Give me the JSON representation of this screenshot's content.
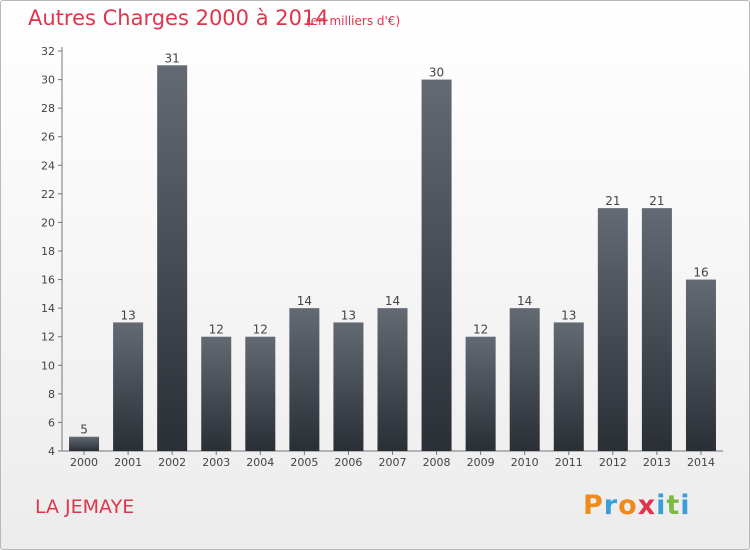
{
  "title": "Autres Charges 2000 à 2014",
  "subtitle": "(en milliers d'€)",
  "commune": "LA JEMAYE",
  "logo": {
    "letters": [
      "P",
      "r",
      "o",
      "x",
      "i",
      "t",
      "i"
    ],
    "colors": [
      "#f08a1d",
      "#3a9fd6",
      "#f08a1d",
      "#e0344c",
      "#3a9fd6",
      "#7db943",
      "#3a9fd6"
    ]
  },
  "colors": {
    "title": "#e0344c",
    "bar_top": "#636a73",
    "bar_bottom": "#2a2f36"
  },
  "chart_data": {
    "type": "bar",
    "categories": [
      "2000",
      "2001",
      "2002",
      "2003",
      "2004",
      "2005",
      "2006",
      "2007",
      "2008",
      "2009",
      "2010",
      "2011",
      "2012",
      "2013",
      "2014"
    ],
    "values": [
      5,
      13,
      31,
      12,
      12,
      14,
      13,
      14,
      30,
      12,
      14,
      13,
      21,
      21,
      16
    ],
    "ylim": [
      4,
      32
    ],
    "yticks": [
      4,
      6,
      8,
      10,
      12,
      14,
      16,
      18,
      20,
      22,
      24,
      26,
      28,
      30,
      32
    ],
    "grid": false,
    "legend": "none"
  }
}
